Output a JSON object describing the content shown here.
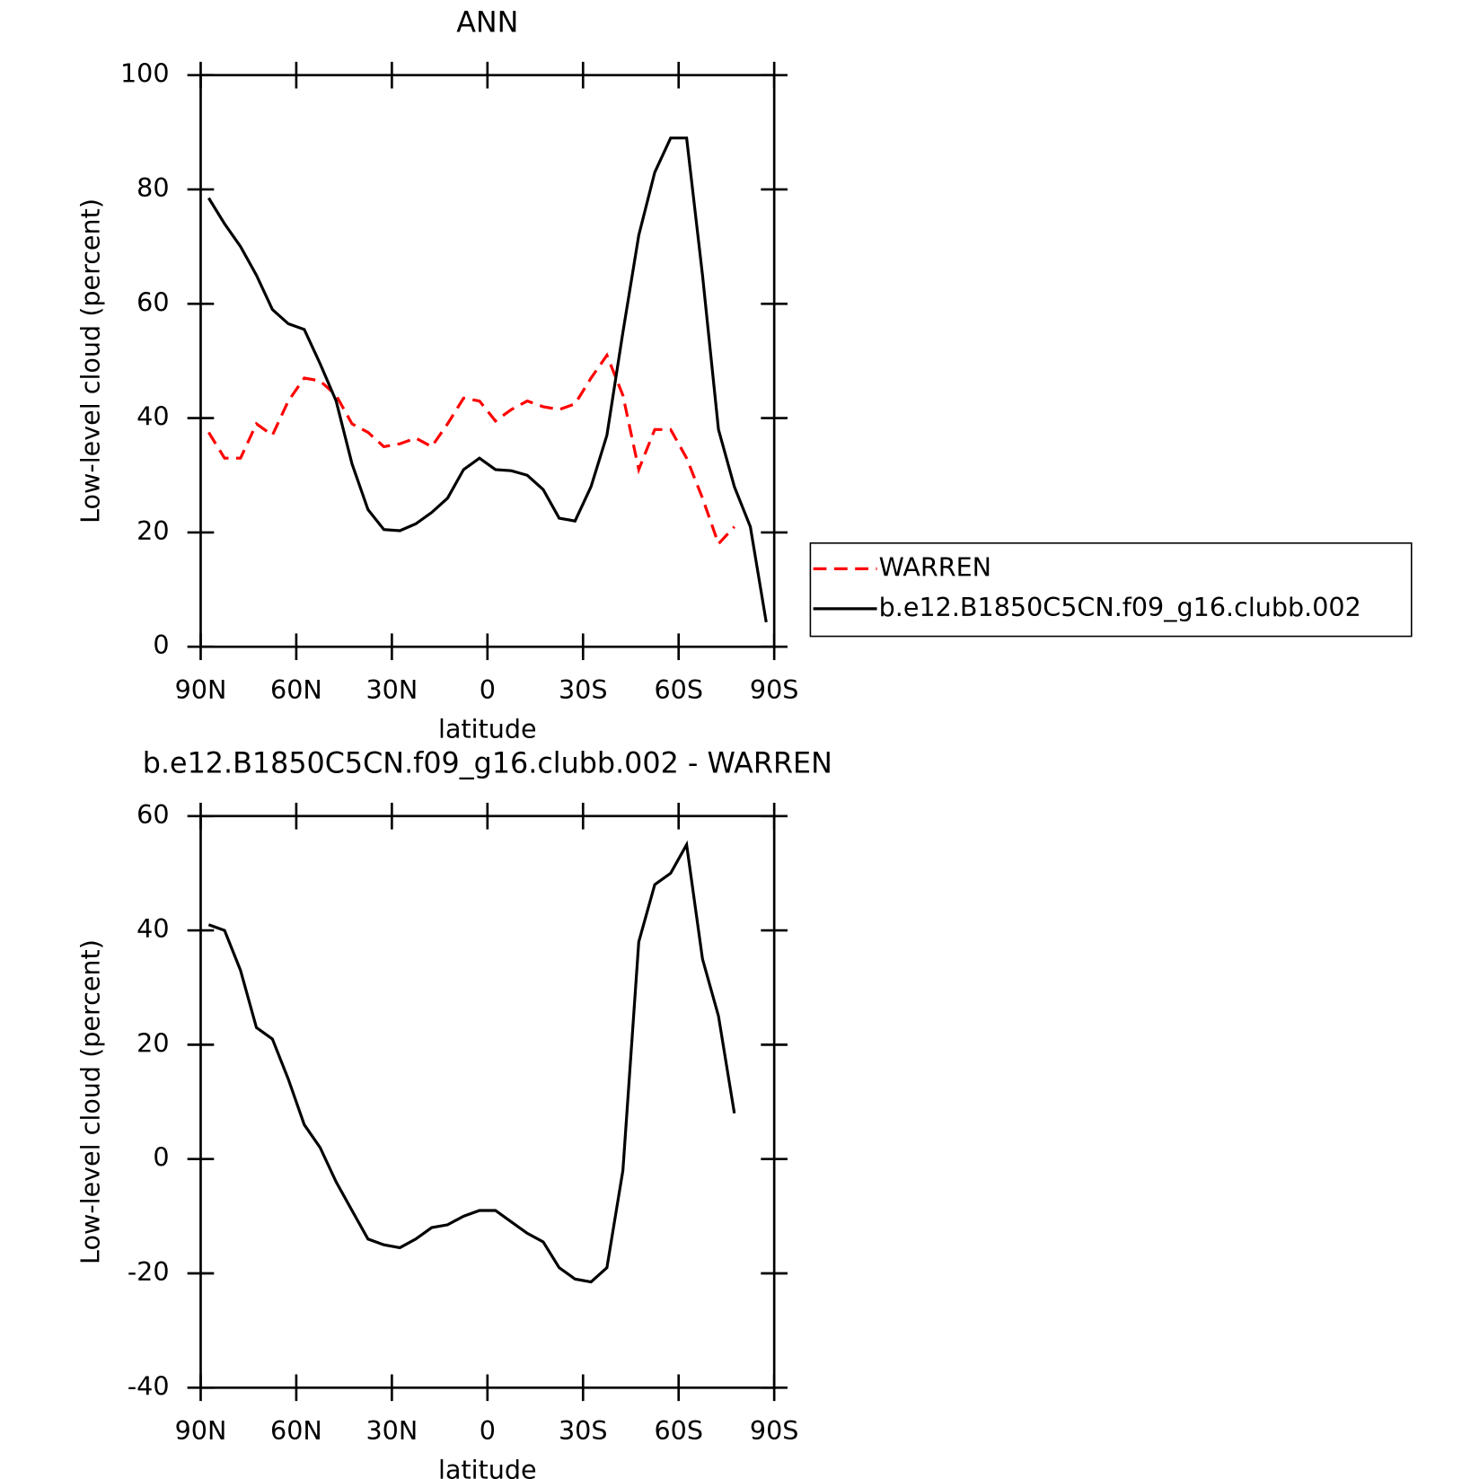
{
  "chart_data": [
    {
      "type": "line",
      "title": "ANN",
      "xlabel": "latitude",
      "ylabel": "Low-level cloud (percent)",
      "x": [
        87.5,
        82.5,
        77.5,
        72.5,
        67.5,
        62.5,
        57.5,
        52.5,
        47.5,
        42.5,
        37.5,
        32.5,
        27.5,
        22.5,
        17.5,
        12.5,
        7.5,
        2.5,
        -2.5,
        -7.5,
        -12.5,
        -17.5,
        -22.5,
        -27.5,
        -32.5,
        -37.5,
        -42.5,
        -47.5,
        -52.5,
        -57.5,
        -62.5,
        -67.5,
        -72.5,
        -77.5,
        -82.5,
        -87.5
      ],
      "series": [
        {
          "name": "WARREN",
          "color": "#ff0000",
          "dash": "dashed",
          "values": [
            37.5,
            33,
            33,
            39,
            37,
            43,
            47,
            46.5,
            44,
            39,
            37.5,
            35,
            35.5,
            36.5,
            35,
            39,
            43.5,
            43,
            39.5,
            41.5,
            43,
            42,
            41.5,
            42.5,
            47,
            51,
            44,
            31,
            38,
            38,
            33,
            26,
            18,
            21,
            null,
            null
          ]
        },
        {
          "name": "b.e12.B1850C5CN.f09_g16.clubb.002",
          "color": "#000000",
          "dash": "solid",
          "values": [
            78.5,
            74,
            70,
            65,
            59,
            56.5,
            55.5,
            49.5,
            43,
            32,
            24,
            20.5,
            20.3,
            21.5,
            23.5,
            26,
            31,
            33,
            31,
            30.8,
            30,
            27.5,
            22.5,
            22,
            28,
            37,
            55,
            72,
            83,
            89,
            89,
            65,
            38,
            28,
            21,
            4.3
          ]
        }
      ],
      "xlim": [
        90,
        -90
      ],
      "xticks": [
        {
          "value": 90,
          "label": "90N"
        },
        {
          "value": 60,
          "label": "60N"
        },
        {
          "value": 30,
          "label": "30N"
        },
        0,
        {
          "value": -30,
          "label": "30S"
        },
        {
          "value": -60,
          "label": "60S"
        },
        {
          "value": -90,
          "label": "90S"
        }
      ],
      "ylim": [
        0,
        100
      ],
      "yticks": [
        0,
        20,
        40,
        60,
        80,
        100
      ],
      "legend": "right"
    },
    {
      "type": "line",
      "title": "b.e12.B1850C5CN.f09_g16.clubb.002 - WARREN",
      "xlabel": "latitude",
      "ylabel": "Low-level cloud (percent)",
      "x": [
        87.5,
        82.5,
        77.5,
        72.5,
        67.5,
        62.5,
        57.5,
        52.5,
        47.5,
        42.5,
        37.5,
        32.5,
        27.5,
        22.5,
        17.5,
        12.5,
        7.5,
        2.5,
        -2.5,
        -7.5,
        -12.5,
        -17.5,
        -22.5,
        -27.5,
        -32.5,
        -37.5,
        -42.5,
        -47.5,
        -52.5,
        -57.5,
        -62.5,
        -67.5,
        -72.5,
        -77.5,
        -82.5,
        -87.5
      ],
      "series": [
        {
          "color": "#000000",
          "dash": "solid",
          "values": [
            41,
            40,
            33,
            23,
            21,
            14,
            6,
            2,
            -4,
            -9,
            -14,
            -15,
            -15.5,
            -14,
            -12,
            -11.5,
            -10,
            -9,
            -9,
            -11,
            -13,
            -14.5,
            -19,
            -21,
            -21.5,
            -19,
            -2,
            38,
            48,
            50,
            55,
            35,
            25,
            8,
            null,
            null
          ]
        }
      ],
      "xlim": [
        90,
        -90
      ],
      "xticks": [
        {
          "value": 90,
          "label": "90N"
        },
        {
          "value": 60,
          "label": "60N"
        },
        {
          "value": 30,
          "label": "30N"
        },
        0,
        {
          "value": -30,
          "label": "30S"
        },
        {
          "value": -60,
          "label": "60S"
        },
        {
          "value": -90,
          "label": "90S"
        }
      ],
      "ylim": [
        -40,
        60
      ],
      "yticks": [
        -40,
        -20,
        0,
        20,
        40,
        60
      ]
    }
  ]
}
